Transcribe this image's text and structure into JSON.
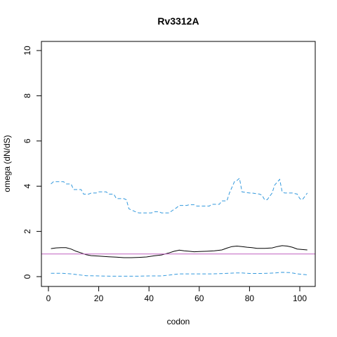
{
  "chart_data": {
    "type": "line",
    "title": "Rv3312A",
    "xlabel": "codon",
    "ylabel": "omega (dN/dS)",
    "xlim": [
      0,
      104
    ],
    "ylim": [
      0,
      10
    ],
    "x_ticks": [
      0,
      20,
      40,
      60,
      80,
      100
    ],
    "y_ticks": [
      0,
      2,
      4,
      6,
      8,
      10
    ],
    "grid": false,
    "reference_line": {
      "y": 1,
      "color": "#c060c0"
    },
    "series": [
      {
        "style": "solid",
        "color": "#000000",
        "x": [
          1,
          3,
          5,
          7,
          9,
          11,
          13,
          15,
          17,
          20,
          24,
          27,
          30,
          33,
          36,
          39,
          42,
          45,
          48,
          50,
          52,
          54,
          56,
          58,
          60,
          63,
          66,
          69,
          71,
          73,
          75,
          77,
          79,
          81,
          83,
          86,
          89,
          91,
          93,
          95,
          97,
          99,
          101,
          103
        ],
        "values": [
          1.24,
          1.27,
          1.28,
          1.28,
          1.22,
          1.12,
          1.05,
          0.97,
          0.93,
          0.91,
          0.88,
          0.86,
          0.84,
          0.84,
          0.85,
          0.87,
          0.92,
          0.96,
          1.05,
          1.12,
          1.17,
          1.14,
          1.12,
          1.1,
          1.11,
          1.12,
          1.14,
          1.18,
          1.26,
          1.33,
          1.35,
          1.33,
          1.3,
          1.28,
          1.25,
          1.25,
          1.27,
          1.33,
          1.37,
          1.35,
          1.3,
          1.22,
          1.2,
          1.18
        ]
      },
      {
        "style": "dashed",
        "color": "#3399dd",
        "x": [
          1,
          2,
          6,
          7,
          9,
          10,
          13,
          14,
          16,
          17,
          19,
          20,
          23,
          24,
          26,
          27,
          30,
          31,
          32,
          33,
          35,
          36,
          41,
          42,
          44,
          45,
          48,
          49,
          51,
          52,
          55,
          56,
          58,
          59,
          64,
          65,
          68,
          69,
          71,
          72,
          74,
          75,
          76,
          77,
          80,
          81,
          84,
          85,
          86,
          87,
          89,
          90,
          92,
          93,
          94,
          95,
          96,
          97,
          99,
          100,
          101,
          102,
          103
        ],
        "values": [
          4.1,
          4.2,
          4.2,
          4.1,
          4.1,
          3.85,
          3.85,
          3.65,
          3.65,
          3.7,
          3.7,
          3.75,
          3.75,
          3.65,
          3.65,
          3.45,
          3.45,
          3.4,
          3.0,
          2.95,
          2.85,
          2.82,
          2.82,
          2.87,
          2.87,
          2.82,
          2.82,
          2.9,
          3.05,
          3.15,
          3.15,
          3.18,
          3.18,
          3.12,
          3.12,
          3.2,
          3.2,
          3.35,
          3.35,
          3.7,
          4.2,
          4.25,
          4.35,
          3.75,
          3.7,
          3.7,
          3.65,
          3.6,
          3.4,
          3.4,
          3.7,
          4.05,
          4.3,
          3.75,
          3.7,
          3.7,
          3.7,
          3.7,
          3.65,
          3.45,
          3.4,
          3.55,
          3.7
        ]
      },
      {
        "style": "dashed",
        "color": "#3399dd",
        "x": [
          1,
          5,
          9,
          12,
          15,
          20,
          25,
          30,
          35,
          40,
          45,
          49,
          52,
          56,
          60,
          65,
          70,
          74,
          77,
          80,
          85,
          90,
          93,
          96,
          99,
          103
        ],
        "values": [
          0.15,
          0.15,
          0.12,
          0.08,
          0.04,
          0.03,
          0.02,
          0.02,
          0.02,
          0.03,
          0.03,
          0.08,
          0.12,
          0.12,
          0.12,
          0.12,
          0.14,
          0.16,
          0.16,
          0.14,
          0.14,
          0.16,
          0.19,
          0.18,
          0.12,
          0.08
        ]
      }
    ]
  }
}
